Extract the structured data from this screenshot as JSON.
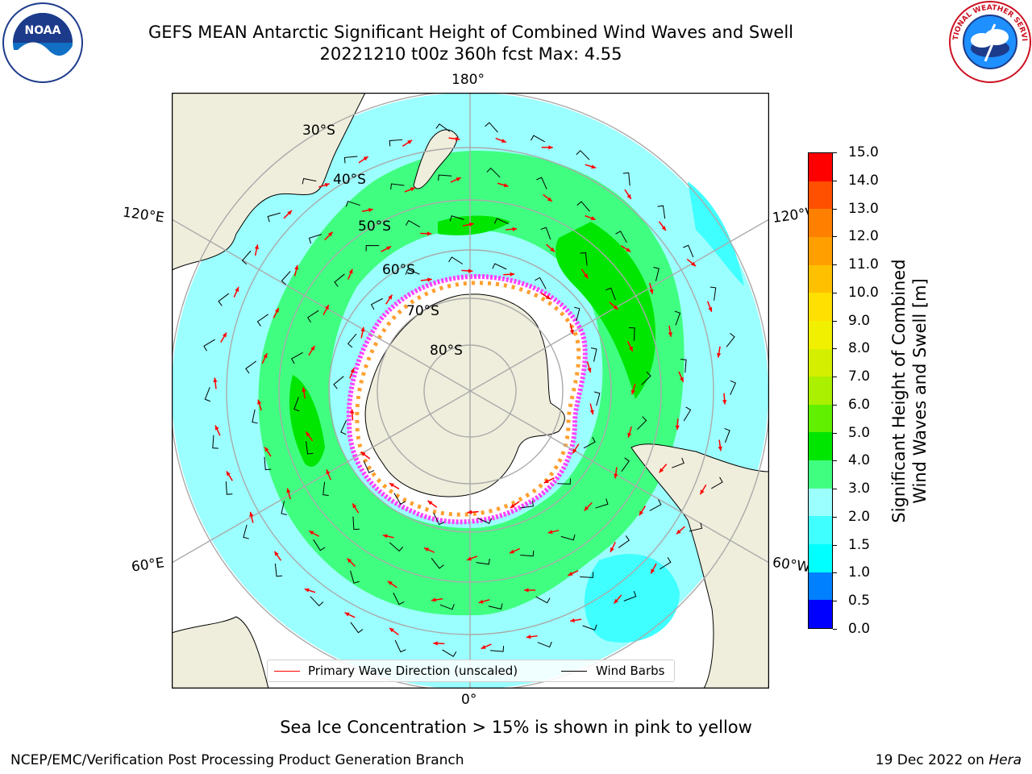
{
  "header": {
    "title": "GEFS MEAN Antarctic Significant Height of Combined Wind Waves and Swell",
    "subtitle": "20221210 t00z 360h fcst   Max: 4.55"
  },
  "logos": {
    "left": "noaa-logo",
    "left_text": "NOAA",
    "right": "nws-logo",
    "right_text": "NATIONAL WEATHER SERVICE"
  },
  "map": {
    "projection": "south-polar-stereographic",
    "lon_labels": [
      "180°",
      "120°E",
      "120°W",
      "60°E",
      "60°W",
      "0°"
    ],
    "lat_labels": [
      "30°S",
      "40°S",
      "50°S",
      "60°S",
      "70°S",
      "80°S"
    ]
  },
  "colorbar": {
    "title_line1": "Significant Height of Combined",
    "title_line2": "Wind Waves and Swell [m]",
    "ticks": [
      "0.0",
      "0.5",
      "1.0",
      "1.5",
      "2.0",
      "3.0",
      "4.0",
      "5.0",
      "6.0",
      "7.0",
      "8.0",
      "9.0",
      "10.0",
      "11.0",
      "12.0",
      "13.0",
      "14.0",
      "15.0"
    ],
    "colors": [
      "#0000ff",
      "#0080ff",
      "#00ffff",
      "#40ffff",
      "#9cffff",
      "#40ff80",
      "#00e600",
      "#60f000",
      "#aaf000",
      "#d4f000",
      "#f0f000",
      "#ffe000",
      "#ffc000",
      "#ffa000",
      "#ff8000",
      "#ff5000",
      "#ff0000"
    ]
  },
  "legend": {
    "primary_wave": "Primary Wave Direction (unscaled)",
    "wind_barbs": "Wind Barbs",
    "wave_color": "#ff0000",
    "barb_color": "#000000"
  },
  "caption": "Sea Ice Concentration > 15% is shown in pink to yellow",
  "footer": {
    "credit": "NCEP/EMC/Verification Post Processing Product Generation Branch",
    "date": "19 Dec 2022 on",
    "machine": "Hera"
  },
  "colors": {
    "land": "#efeedc",
    "ocean_low": "#9cffff",
    "ocean_mid": "#40ff80",
    "ocean_high": "#00e600",
    "ice": "#ffffff",
    "ice_edge": "#ff40ff",
    "grid": "#aaaaaa"
  }
}
